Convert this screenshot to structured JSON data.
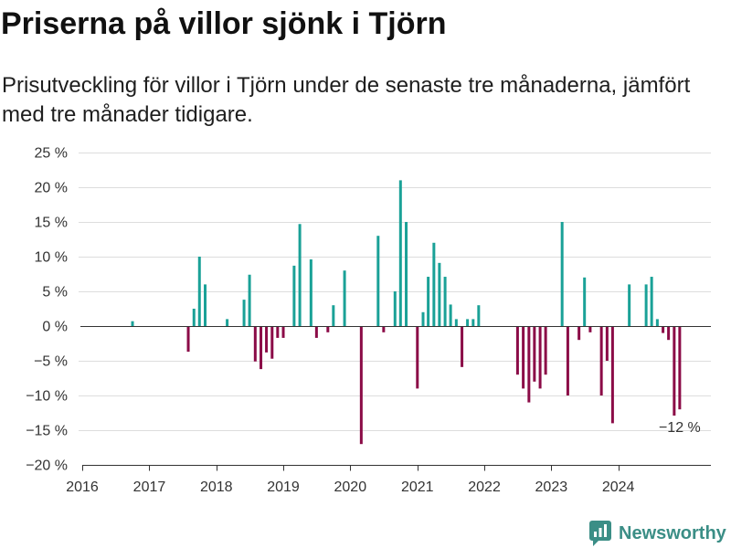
{
  "chart_data": {
    "type": "bar",
    "title": "Priserna på villor sjönk i Tjörn",
    "subtitle": "Prisutveckling för villor i Tjörn under de senaste tre månaderna, jämfört med tre månader tidigare.",
    "x": [
      "2016-10",
      "2017-08",
      "2017-09",
      "2017-10",
      "2017-11",
      "2018-03",
      "2018-06",
      "2018-07",
      "2018-08",
      "2018-09",
      "2018-10",
      "2018-11",
      "2018-12",
      "2019-01",
      "2019-03",
      "2019-04",
      "2019-06",
      "2019-07",
      "2019-09",
      "2019-10",
      "2019-12",
      "2020-03",
      "2020-06",
      "2020-07",
      "2020-09",
      "2020-10",
      "2020-11",
      "2021-01",
      "2021-02",
      "2021-03",
      "2021-04",
      "2021-05",
      "2021-06",
      "2021-07",
      "2021-08",
      "2021-09",
      "2021-10",
      "2021-11",
      "2021-12",
      "2022-07",
      "2022-08",
      "2022-09",
      "2022-10",
      "2022-11",
      "2022-12",
      "2023-03",
      "2023-04",
      "2023-06",
      "2023-07",
      "2023-08",
      "2023-10",
      "2023-11",
      "2023-12",
      "2024-03",
      "2024-06",
      "2024-07",
      "2024-08",
      "2024-09",
      "2024-10",
      "2024-11",
      "2024-12"
    ],
    "values": [
      0.7,
      -3.7,
      2.5,
      10,
      6,
      1,
      3.8,
      7.4,
      -5.1,
      -6.2,
      -3.8,
      -4.7,
      -1.7,
      -1.7,
      8.7,
      14.7,
      9.6,
      -1.7,
      -0.9,
      3,
      8,
      -17,
      13,
      -0.9,
      5,
      21,
      15,
      -9,
      2,
      7.1,
      12,
      9.1,
      7.1,
      3.1,
      1,
      -5.9,
      1,
      1,
      3,
      -7,
      -9,
      -11,
      -8,
      -9,
      -7,
      15,
      -10,
      -2,
      7,
      -0.9,
      -10,
      -5,
      -14,
      6,
      6,
      7.1,
      1,
      -1,
      -2,
      -12.9,
      -12
    ],
    "xlim": [
      "2016-01-01",
      "2025-05-20"
    ],
    "ylim": [
      -20,
      25
    ],
    "y_ticks": [
      25,
      20,
      15,
      10,
      5,
      0,
      -5,
      -10,
      -15,
      -20
    ],
    "y_tick_labels": [
      "25 %",
      "20 %",
      "15 %",
      "10 %",
      "5 %",
      "0 %",
      "−5 %",
      "−10 %",
      "−15 %",
      "−20 %"
    ],
    "x_tick_labels": [
      "2016",
      "2017",
      "2018",
      "2019",
      "2020",
      "2021",
      "2022",
      "2023",
      "2024"
    ],
    "grid": true,
    "colors": {
      "positive": "#1aa197",
      "negative": "#8b0b47",
      "axis": "#333333",
      "grid": "#dddddd"
    },
    "annotation": {
      "x": "2024-12",
      "text": "−12 %"
    }
  },
  "branding": {
    "logo_text": "Newsworthy",
    "logo_icon": "newsworthy-logo-icon",
    "color": "#3b8e86"
  }
}
